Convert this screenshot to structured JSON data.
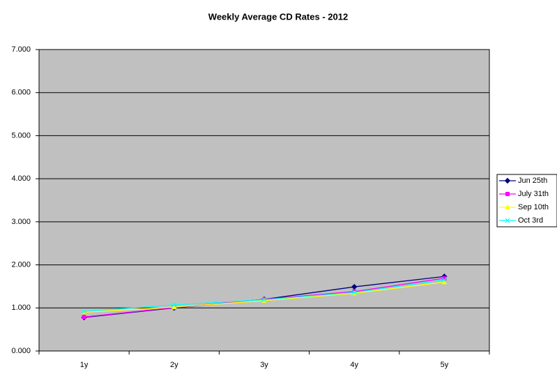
{
  "chart_data": {
    "type": "line",
    "title": "Weekly Average CD Rates - 2012",
    "categories": [
      "1y",
      "2y",
      "3y",
      "4y",
      "5y"
    ],
    "series": [
      {
        "name": "Jun 25th",
        "color": "#000080",
        "marker": "diamond",
        "values": [
          0.78,
          1.0,
          1.2,
          1.49,
          1.73
        ]
      },
      {
        "name": "July 31th",
        "color": "#ff00ff",
        "marker": "square",
        "values": [
          0.79,
          1.01,
          1.2,
          1.38,
          1.69
        ]
      },
      {
        "name": "Sep 10th",
        "color": "#ffff00",
        "marker": "triangle",
        "values": [
          0.9,
          1.02,
          1.17,
          1.34,
          1.6
        ]
      },
      {
        "name": "Oct 3rd",
        "color": "#00ffff",
        "marker": "x",
        "values": [
          0.92,
          1.07,
          1.19,
          1.36,
          1.65
        ]
      }
    ],
    "ylim": [
      0,
      7
    ],
    "yticks": [
      {
        "value": 0,
        "label": "0.000"
      },
      {
        "value": 1,
        "label": "1.000"
      },
      {
        "value": 2,
        "label": "2.000"
      },
      {
        "value": 3,
        "label": "3.000"
      },
      {
        "value": 4,
        "label": "4.000"
      },
      {
        "value": 5,
        "label": "5.000"
      },
      {
        "value": 6,
        "label": "6.000"
      },
      {
        "value": 7,
        "label": "7.000"
      }
    ],
    "grid": true,
    "legend": "right"
  }
}
